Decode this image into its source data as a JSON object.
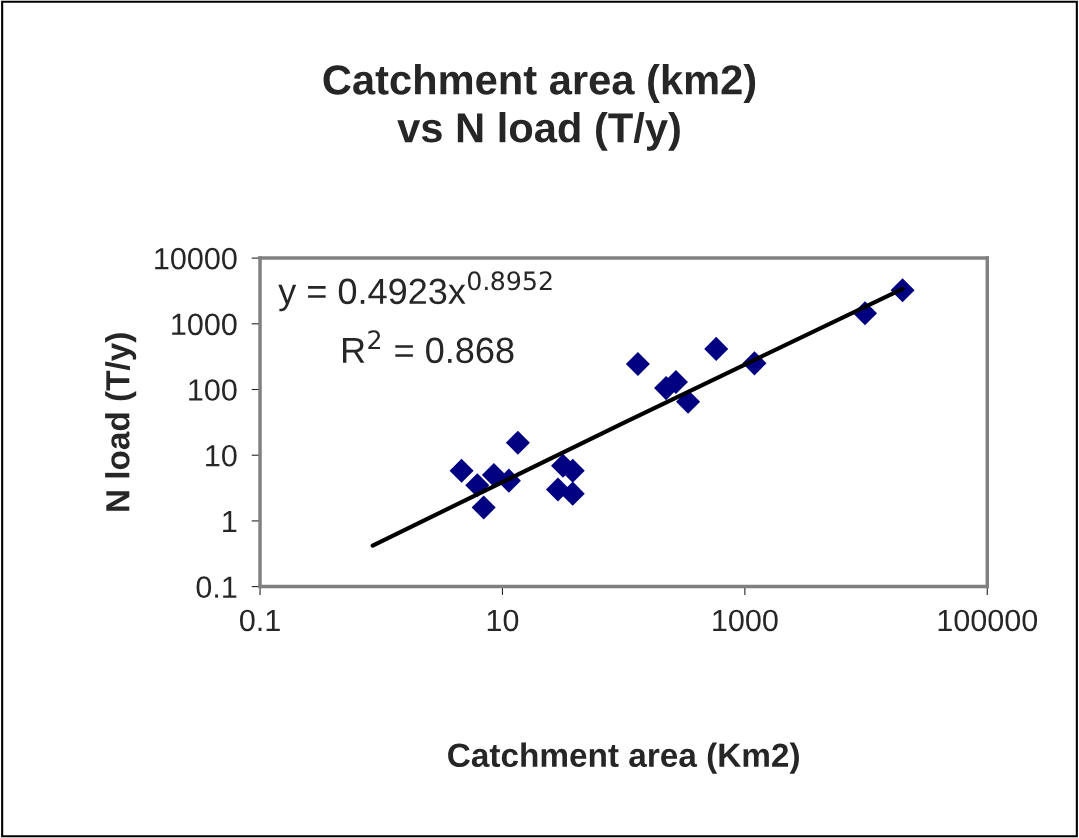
{
  "chart_data": {
    "type": "scatter",
    "title": "Catchment area (km2)\nvs N load (T/y)",
    "xlabel": "Catchment area (Km2)",
    "ylabel": "N load (T/y)",
    "series": [
      {
        "color": "#000080",
        "marker": "diamond",
        "x": [
          4.6,
          6.2,
          7.0,
          8.5,
          11.3,
          13.4,
          28.7,
          31.6,
          38,
          38,
          131,
          224,
          270,
          340,
          580,
          1200,
          9800,
          20000
        ],
        "values": [
          5.8,
          3.5,
          1.6,
          5.0,
          4.1,
          15.5,
          3.0,
          6.9,
          5.8,
          2.6,
          245,
          105,
          130,
          65,
          415,
          250,
          1450,
          3250
        ]
      },
      {
        "type": "line",
        "color": "#000000",
        "marker": "none",
        "line_style": "solid",
        "x": [
          0.85,
          10,
          100,
          1000,
          20000
        ],
        "values": [
          0.42,
          3.9,
          31,
          240,
          3400
        ]
      }
    ],
    "annotations": [
      "y = 0.4923x$^{0.8952}$",
      "R$^{2}$ = 0.868"
    ],
    "log": "xy",
    "xlim": [
      0.1,
      100000
    ],
    "ylim": [
      0.1,
      10000
    ],
    "xticks": [
      0.1,
      10,
      1000,
      100000
    ],
    "yticks": [
      0.1,
      1,
      10,
      100,
      1000,
      10000
    ],
    "grid": false,
    "legend": false
  }
}
